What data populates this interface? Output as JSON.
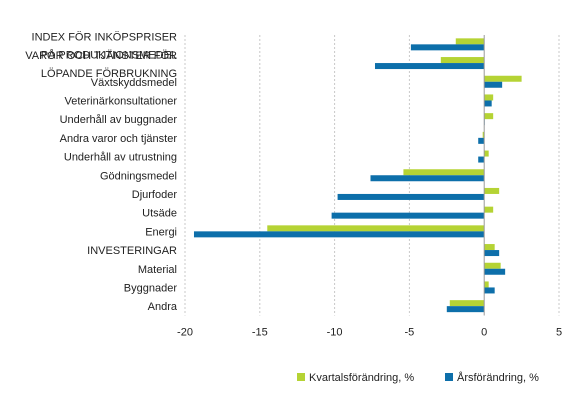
{
  "chart_data": {
    "type": "bar",
    "orientation": "horizontal",
    "categories": [
      [
        "INDEX FÖR INKÖPSPRISER",
        "PÅ PRODUKTIONSMEDEL"
      ],
      [
        "VAROR OCH TJÄNSTER FÖR",
        "LÖPANDE FÖRBRUKNING"
      ],
      [
        "Växtskyddsmedel"
      ],
      [
        "Veterinärkonsultationer"
      ],
      [
        "Underhåll av buggnader"
      ],
      [
        "Andra varor och tjänster"
      ],
      [
        "Underhåll av utrustning"
      ],
      [
        "Gödningsmedel"
      ],
      [
        "Djurfoder"
      ],
      [
        "Utsäde"
      ],
      [
        "Energi"
      ],
      [
        "INVESTERINGAR"
      ],
      [
        "Material"
      ],
      [
        "Byggnader"
      ],
      [
        "Andra"
      ]
    ],
    "series": [
      {
        "name": "Kvartalsförändring, %",
        "color": "#b5d334",
        "values": [
          -1.9,
          -2.9,
          2.5,
          0.6,
          0.6,
          -0.1,
          0.3,
          -5.4,
          1.0,
          0.6,
          -14.5,
          0.7,
          1.1,
          0.3,
          -2.3
        ]
      },
      {
        "name": "Årsförändring, %",
        "color": "#0d6faa",
        "values": [
          -4.9,
          -7.3,
          1.2,
          0.5,
          0.0,
          -0.4,
          -0.4,
          -7.6,
          -9.8,
          -10.2,
          -19.4,
          1.0,
          1.4,
          0.7,
          -2.5
        ]
      }
    ],
    "xlim": [
      -20,
      5
    ],
    "xticks": [
      -20,
      -15,
      -10,
      -5,
      0,
      5
    ],
    "grid": "vertical",
    "legend": "bottom-right",
    "title": "",
    "xlabel": "",
    "ylabel": ""
  }
}
